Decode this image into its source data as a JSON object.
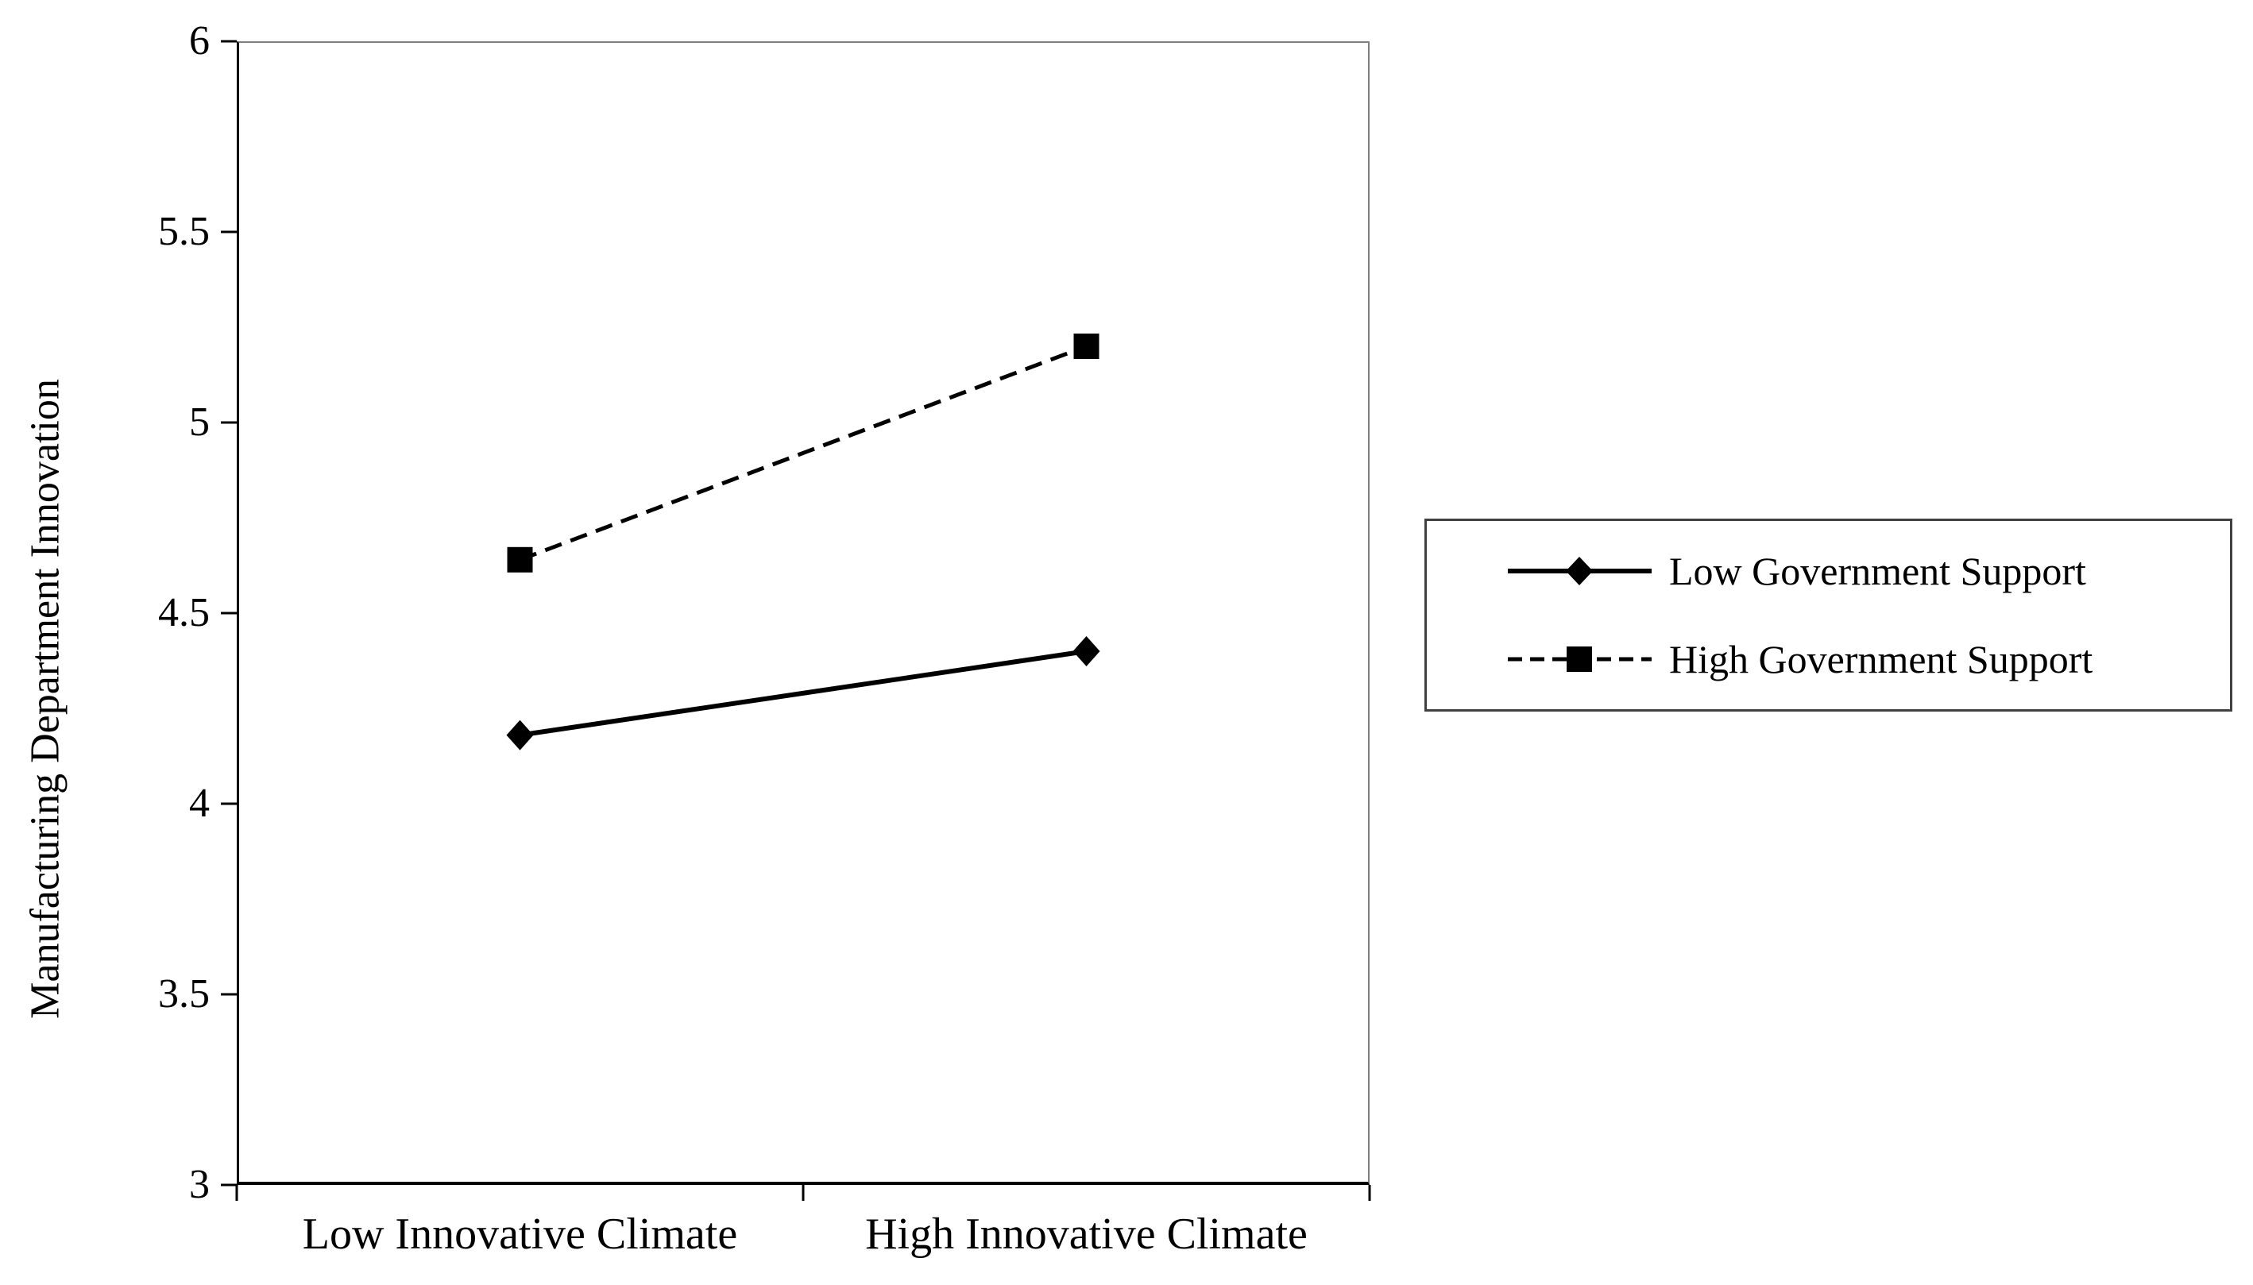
{
  "chart_data": {
    "type": "line",
    "title": "",
    "xlabel": "",
    "ylabel": "Manufacturing Department Innovation",
    "categories": [
      "Low Innovative Climate",
      "High Innovative Climate"
    ],
    "series": [
      {
        "name": "Low Government Support",
        "values": [
          4.18,
          4.4
        ],
        "marker": "diamond",
        "line_style": "solid",
        "color": "#000000"
      },
      {
        "name": "High Government Support",
        "values": [
          4.64,
          5.2
        ],
        "marker": "square",
        "line_style": "dashed",
        "color": "#000000"
      }
    ],
    "ylim": [
      3,
      6
    ],
    "yticks": [
      3,
      3.5,
      4,
      4.5,
      5,
      5.5,
      6
    ],
    "ytick_step": 0.5,
    "grid": false,
    "legend_position": "right-outside",
    "axis_color": "#000000",
    "plot_border_color": "#7f7f7f",
    "legend_border_color": "#404040",
    "background_color": "#ffffff"
  }
}
